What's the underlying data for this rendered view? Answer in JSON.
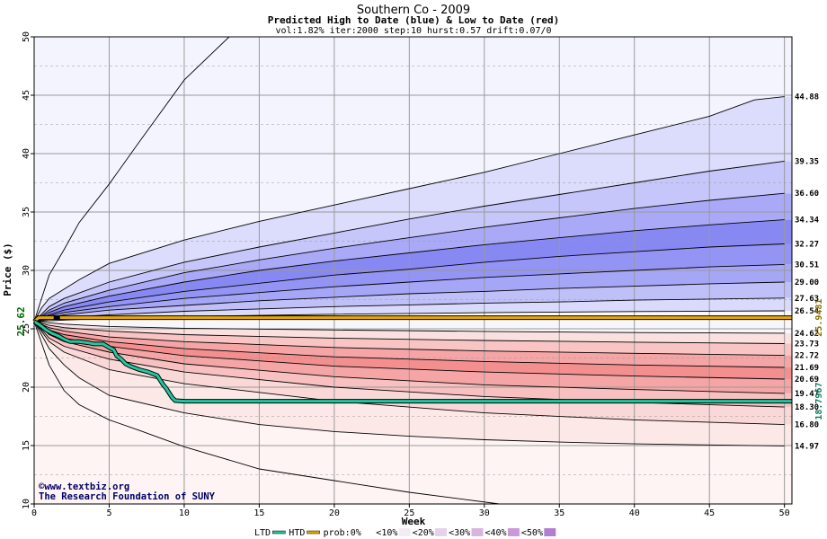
{
  "chart_data": {
    "type": "area",
    "title": "Southern Co - 2009",
    "subtitle": "Predicted High to Date (blue) &  Low to Date (red)",
    "params": "vol:1.82% iter:2000 step:10 hurst:0.57 drift:0.07/0",
    "xlabel": "Week",
    "ylabel": "Price ($)",
    "xlim": [
      0,
      50.5
    ],
    "ylim": [
      10,
      50
    ],
    "xticks": [
      0,
      5,
      10,
      15,
      20,
      25,
      30,
      35,
      40,
      45,
      50
    ],
    "yticks": [
      10,
      15,
      20,
      25,
      30,
      35,
      40,
      45,
      50
    ],
    "grid": true,
    "start_price": 25.62,
    "start_label": "25.62",
    "credit_line1": "www.textbiz.org",
    "credit_line2": "The Research Foundation of SUNY",
    "copyright_symbol": "©",
    "right_labels": [
      "44.88",
      "39.35",
      "36.60",
      "34.34",
      "32.27",
      "30.51",
      "29.00",
      "27.63",
      "26.54",
      "24.62",
      "23.73",
      "22.72",
      "21.69",
      "20.69",
      "19.47",
      "18.30",
      "16.80",
      "14.97"
    ],
    "high_quantile_curves": [
      {
        "end": 50,
        "final_x": 13,
        "values_at_x": [
          [
            0,
            25.62
          ],
          [
            1,
            29.6
          ],
          [
            2,
            31.8
          ],
          [
            3,
            34.1
          ],
          [
            5,
            37.4
          ],
          [
            7,
            41.0
          ],
          [
            10,
            46.3
          ],
          [
            13,
            50
          ]
        ]
      },
      {
        "end": 44.88,
        "values_at_x": [
          [
            0,
            25.62
          ],
          [
            0.5,
            26.8
          ],
          [
            1,
            27.6
          ],
          [
            2,
            28.4
          ],
          [
            3,
            29.2
          ],
          [
            5,
            30.6
          ],
          [
            10,
            32.6
          ],
          [
            15,
            34.2
          ],
          [
            20,
            35.6
          ],
          [
            25,
            37.0
          ],
          [
            30,
            38.4
          ],
          [
            35,
            40.0
          ],
          [
            40,
            41.6
          ],
          [
            45,
            43.2
          ],
          [
            48,
            44.6
          ],
          [
            50,
            44.88
          ]
        ]
      },
      {
        "end": 39.35,
        "values_at_x": [
          [
            0,
            25.62
          ],
          [
            1,
            26.9
          ],
          [
            2,
            27.6
          ],
          [
            5,
            29.0
          ],
          [
            10,
            30.7
          ],
          [
            15,
            32.0
          ],
          [
            20,
            33.2
          ],
          [
            25,
            34.4
          ],
          [
            30,
            35.5
          ],
          [
            35,
            36.5
          ],
          [
            40,
            37.5
          ],
          [
            45,
            38.5
          ],
          [
            50,
            39.35
          ]
        ]
      },
      {
        "end": 36.6,
        "values_at_x": [
          [
            0,
            25.62
          ],
          [
            1,
            26.6
          ],
          [
            2,
            27.2
          ],
          [
            5,
            28.3
          ],
          [
            10,
            29.8
          ],
          [
            15,
            30.9
          ],
          [
            20,
            31.9
          ],
          [
            25,
            32.8
          ],
          [
            30,
            33.7
          ],
          [
            35,
            34.5
          ],
          [
            40,
            35.3
          ],
          [
            45,
            36.0
          ],
          [
            50,
            36.6
          ]
        ]
      },
      {
        "end": 34.34,
        "values_at_x": [
          [
            0,
            25.62
          ],
          [
            1,
            26.4
          ],
          [
            2,
            26.9
          ],
          [
            5,
            27.8
          ],
          [
            10,
            29.0
          ],
          [
            15,
            30.0
          ],
          [
            20,
            30.8
          ],
          [
            25,
            31.5
          ],
          [
            30,
            32.2
          ],
          [
            35,
            32.8
          ],
          [
            40,
            33.4
          ],
          [
            45,
            33.9
          ],
          [
            50,
            34.34
          ]
        ]
      },
      {
        "end": 32.27,
        "values_at_x": [
          [
            0,
            25.62
          ],
          [
            1,
            26.2
          ],
          [
            2,
            26.6
          ],
          [
            5,
            27.3
          ],
          [
            10,
            28.2
          ],
          [
            15,
            28.9
          ],
          [
            20,
            29.6
          ],
          [
            25,
            30.1
          ],
          [
            30,
            30.7
          ],
          [
            35,
            31.2
          ],
          [
            40,
            31.6
          ],
          [
            45,
            32.0
          ],
          [
            50,
            32.27
          ]
        ]
      },
      {
        "end": 30.51,
        "values_at_x": [
          [
            0,
            25.62
          ],
          [
            1,
            26.1
          ],
          [
            2,
            26.4
          ],
          [
            5,
            26.9
          ],
          [
            10,
            27.6
          ],
          [
            15,
            28.1
          ],
          [
            20,
            28.6
          ],
          [
            25,
            29.0
          ],
          [
            30,
            29.4
          ],
          [
            35,
            29.7
          ],
          [
            40,
            30.0
          ],
          [
            45,
            30.3
          ],
          [
            50,
            30.51
          ]
        ]
      },
      {
        "end": 29.0,
        "values_at_x": [
          [
            0,
            25.62
          ],
          [
            1,
            25.95
          ],
          [
            2,
            26.2
          ],
          [
            5,
            26.6
          ],
          [
            10,
            27.0
          ],
          [
            15,
            27.4
          ],
          [
            20,
            27.7
          ],
          [
            25,
            28.0
          ],
          [
            30,
            28.2
          ],
          [
            35,
            28.45
          ],
          [
            40,
            28.65
          ],
          [
            45,
            28.85
          ],
          [
            50,
            29.0
          ]
        ]
      },
      {
        "end": 27.63,
        "values_at_x": [
          [
            0,
            25.62
          ],
          [
            1,
            25.8
          ],
          [
            2,
            25.95
          ],
          [
            5,
            26.2
          ],
          [
            10,
            26.5
          ],
          [
            15,
            26.7
          ],
          [
            20,
            26.9
          ],
          [
            25,
            27.05
          ],
          [
            30,
            27.2
          ],
          [
            35,
            27.3
          ],
          [
            40,
            27.45
          ],
          [
            45,
            27.55
          ],
          [
            50,
            27.63
          ]
        ]
      },
      {
        "end": 26.54,
        "values_at_x": [
          [
            0,
            25.62
          ],
          [
            2,
            25.75
          ],
          [
            5,
            25.9
          ],
          [
            10,
            26.05
          ],
          [
            20,
            26.25
          ],
          [
            30,
            26.38
          ],
          [
            40,
            26.48
          ],
          [
            50,
            26.54
          ]
        ]
      }
    ],
    "low_quantile_curves": [
      {
        "end": 24.62,
        "values_at_x": [
          [
            0,
            25.62
          ],
          [
            2,
            25.4
          ],
          [
            5,
            25.2
          ],
          [
            10,
            25.05
          ],
          [
            20,
            24.9
          ],
          [
            30,
            24.78
          ],
          [
            40,
            24.68
          ],
          [
            50,
            24.62
          ]
        ]
      },
      {
        "end": 23.73,
        "values_at_x": [
          [
            0,
            25.62
          ],
          [
            1,
            25.3
          ],
          [
            2,
            25.1
          ],
          [
            5,
            24.8
          ],
          [
            10,
            24.5
          ],
          [
            20,
            24.2
          ],
          [
            30,
            24.0
          ],
          [
            40,
            23.85
          ],
          [
            50,
            23.73
          ]
        ]
      },
      {
        "end": 22.72,
        "values_at_x": [
          [
            0,
            25.62
          ],
          [
            1,
            25.1
          ],
          [
            2,
            24.8
          ],
          [
            5,
            24.3
          ],
          [
            10,
            23.9
          ],
          [
            20,
            23.4
          ],
          [
            30,
            23.1
          ],
          [
            40,
            22.9
          ],
          [
            50,
            22.72
          ]
        ]
      },
      {
        "end": 21.69,
        "values_at_x": [
          [
            0,
            25.62
          ],
          [
            1,
            24.9
          ],
          [
            2,
            24.5
          ],
          [
            5,
            23.9
          ],
          [
            10,
            23.3
          ],
          [
            20,
            22.6
          ],
          [
            30,
            22.2
          ],
          [
            40,
            21.9
          ],
          [
            50,
            21.69
          ]
        ]
      },
      {
        "end": 20.69,
        "values_at_x": [
          [
            0,
            25.62
          ],
          [
            1,
            24.7
          ],
          [
            2,
            24.2
          ],
          [
            5,
            23.5
          ],
          [
            10,
            22.7
          ],
          [
            20,
            21.8
          ],
          [
            30,
            21.3
          ],
          [
            40,
            20.95
          ],
          [
            50,
            20.69
          ]
        ]
      },
      {
        "end": 19.47,
        "values_at_x": [
          [
            0,
            25.62
          ],
          [
            1,
            24.5
          ],
          [
            2,
            23.9
          ],
          [
            5,
            23.0
          ],
          [
            10,
            22.0
          ],
          [
            20,
            20.9
          ],
          [
            30,
            20.2
          ],
          [
            40,
            19.8
          ],
          [
            50,
            19.47
          ]
        ]
      },
      {
        "end": 18.3,
        "values_at_x": [
          [
            0,
            25.62
          ],
          [
            1,
            24.2
          ],
          [
            2,
            23.5
          ],
          [
            5,
            22.4
          ],
          [
            10,
            21.3
          ],
          [
            20,
            20.0
          ],
          [
            30,
            19.2
          ],
          [
            40,
            18.7
          ],
          [
            50,
            18.3
          ]
        ]
      },
      {
        "end": 16.8,
        "values_at_x": [
          [
            0,
            25.62
          ],
          [
            1,
            23.9
          ],
          [
            2,
            23.0
          ],
          [
            5,
            21.5
          ],
          [
            10,
            20.3
          ],
          [
            20,
            18.8
          ],
          [
            30,
            17.8
          ],
          [
            40,
            17.2
          ],
          [
            50,
            16.8
          ]
        ]
      },
      {
        "end": 14.97,
        "values_at_x": [
          [
            0,
            25.62
          ],
          [
            1,
            23.3
          ],
          [
            2,
            21.9
          ],
          [
            3,
            20.8
          ],
          [
            5,
            19.3
          ],
          [
            10,
            17.8
          ],
          [
            15,
            16.8
          ],
          [
            20,
            16.2
          ],
          [
            25,
            15.8
          ],
          [
            30,
            15.5
          ],
          [
            35,
            15.3
          ],
          [
            40,
            15.15
          ],
          [
            45,
            15.05
          ],
          [
            50,
            14.97
          ]
        ]
      },
      {
        "end": 10,
        "final_x": 31,
        "values_at_x": [
          [
            0,
            25.62
          ],
          [
            1,
            21.9
          ],
          [
            2,
            19.7
          ],
          [
            3,
            18.5
          ],
          [
            5,
            17.2
          ],
          [
            7,
            16.3
          ],
          [
            10,
            14.9
          ],
          [
            15,
            13.0
          ],
          [
            20,
            12.0
          ],
          [
            25,
            11.0
          ],
          [
            31,
            10.0
          ]
        ]
      }
    ],
    "bands": [
      {
        "upper": 50,
        "lower": 44.88,
        "color": "#f4f4ff"
      },
      {
        "upper": 44.88,
        "lower": 39.35,
        "color": "#dcdcfc"
      },
      {
        "upper": 39.35,
        "lower": 36.6,
        "color": "#c6c6fa"
      },
      {
        "upper": 36.6,
        "lower": 34.34,
        "color": "#a9a9f7"
      },
      {
        "upper": 34.34,
        "lower": 32.27,
        "color": "#8888f2"
      },
      {
        "upper": 32.27,
        "lower": 30.51,
        "color": "#9494f4"
      },
      {
        "upper": 30.51,
        "lower": 29.0,
        "color": "#a6a6f6"
      },
      {
        "upper": 29.0,
        "lower": 27.63,
        "color": "#c0c0f9"
      },
      {
        "upper": 27.63,
        "lower": 26.54,
        "color": "#dadafc"
      },
      {
        "upper": 26.54,
        "lower": 24.62,
        "color": "#f6f6fb"
      },
      {
        "upper": 24.62,
        "lower": 23.73,
        "color": "#fbe0e0"
      },
      {
        "upper": 23.73,
        "lower": 22.72,
        "color": "#f8c4c4"
      },
      {
        "upper": 22.72,
        "lower": 21.69,
        "color": "#f5a5a5"
      },
      {
        "upper": 21.69,
        "lower": 20.69,
        "color": "#f38f8f"
      },
      {
        "upper": 20.69,
        "lower": 19.47,
        "color": "#f5a5a5"
      },
      {
        "upper": 19.47,
        "lower": 18.3,
        "color": "#f8c0c0"
      },
      {
        "upper": 18.3,
        "lower": 16.8,
        "color": "#fad8d8"
      },
      {
        "upper": 16.8,
        "lower": 14.97,
        "color": "#fde8e8"
      },
      {
        "upper": 14.97,
        "lower": 10,
        "color": "#fef4f4"
      }
    ],
    "ltd_series": {
      "name": "LTD",
      "color": "#1fc9a0",
      "end_label": "18.7967",
      "points": [
        [
          0,
          25.62
        ],
        [
          0.4,
          25.3
        ],
        [
          0.8,
          24.9
        ],
        [
          1.2,
          24.6
        ],
        [
          1.6,
          24.4
        ],
        [
          2.0,
          24.1
        ],
        [
          2.4,
          23.9
        ],
        [
          3.0,
          23.9
        ],
        [
          3.6,
          23.8
        ],
        [
          4.0,
          23.7
        ],
        [
          4.6,
          23.7
        ],
        [
          5.0,
          23.4
        ],
        [
          5.3,
          23.2
        ],
        [
          5.5,
          22.7
        ],
        [
          5.8,
          22.4
        ],
        [
          6.1,
          22.0
        ],
        [
          6.4,
          21.8
        ],
        [
          7.0,
          21.5
        ],
        [
          7.6,
          21.3
        ],
        [
          8.2,
          21.0
        ],
        [
          8.4,
          20.6
        ],
        [
          8.6,
          20.2
        ],
        [
          8.8,
          19.9
        ],
        [
          9.0,
          19.5
        ],
        [
          9.2,
          19.1
        ],
        [
          9.4,
          18.85
        ],
        [
          10,
          18.8
        ],
        [
          20,
          18.8
        ],
        [
          30,
          18.8
        ],
        [
          40,
          18.8
        ],
        [
          50.5,
          18.8
        ]
      ]
    },
    "htd_series": {
      "name": "HTD",
      "color": "#e8a800",
      "end_label": "25.9481",
      "points": [
        [
          0,
          25.62
        ],
        [
          0.3,
          25.95
        ],
        [
          50.5,
          25.95
        ]
      ]
    },
    "legend": {
      "items": [
        "LTD",
        "HTD",
        "prob:0%",
        "<10%",
        "<20%",
        "<30%",
        "<40%",
        "<50%"
      ],
      "colors": [
        "#1fc9a0",
        "#e8a800",
        "#ffffff",
        "#f4ecf4",
        "#e6d0ea",
        "#d9b4e0",
        "#c99ad8",
        "#b27fd0"
      ],
      "position": "bottom"
    }
  }
}
